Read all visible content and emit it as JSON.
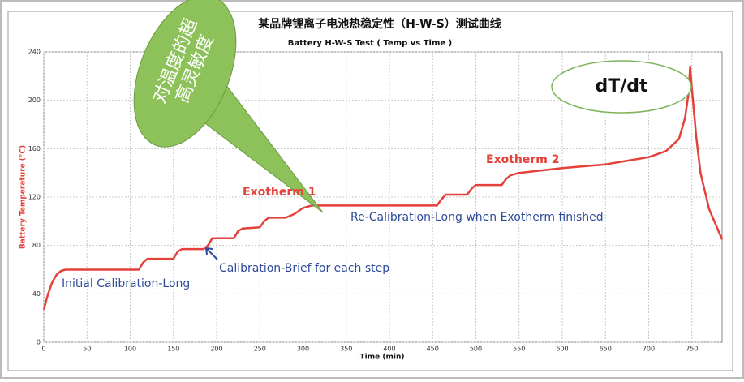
{
  "chart_data": {
    "type": "line",
    "title": "某品牌锂离子电池热稳定性（H-W-S）测试曲线",
    "subtitle": "Battery H-W-S Test ( Temp vs Time )",
    "x_label": "Time (min)",
    "y_label": "Battery Temperature (°C)",
    "x": [
      0,
      5,
      10,
      15,
      20,
      25,
      30,
      60,
      110,
      115,
      120,
      150,
      155,
      160,
      185,
      190,
      195,
      220,
      225,
      230,
      250,
      255,
      260,
      280,
      290,
      300,
      310,
      320,
      400,
      455,
      460,
      465,
      490,
      495,
      500,
      530,
      535,
      540,
      550,
      600,
      650,
      700,
      720,
      735,
      742,
      746,
      748,
      750,
      755,
      760,
      770,
      785
    ],
    "series": [
      {
        "color": "#e5413b",
        "values": [
          27,
          40,
          50,
          56,
          59,
          60,
          60,
          60,
          60,
          66,
          69,
          69,
          75,
          77,
          77,
          80,
          86,
          86,
          92,
          94,
          95,
          100,
          103,
          103,
          106,
          111,
          113,
          113,
          113,
          113,
          118,
          122,
          122,
          127,
          130,
          130,
          135,
          138,
          140,
          144,
          147,
          153,
          158,
          168,
          185,
          205,
          228,
          210,
          170,
          140,
          110,
          85
        ]
      }
    ],
    "xlim": [
      0,
      785
    ],
    "xticks": [
      0,
      50,
      100,
      150,
      200,
      250,
      300,
      350,
      400,
      450,
      500,
      550,
      600,
      650,
      700,
      750
    ],
    "ylim": [
      0,
      240
    ],
    "yticks": [
      0,
      40,
      80,
      120,
      160,
      200,
      240
    ],
    "grid": true,
    "annotations": {
      "exotherm_1": "Exotherm  1",
      "exotherm_2": "Exotherm 2",
      "recalibration": "Re-Calibration-Long when Exotherm finished",
      "calibration_brief": "Calibration-Brief for each step",
      "initial_calibration": "Initial Calibration-Long",
      "dtdt": "dT/dt",
      "callout": [
        "对温度的超",
        "高灵敏度"
      ]
    }
  }
}
